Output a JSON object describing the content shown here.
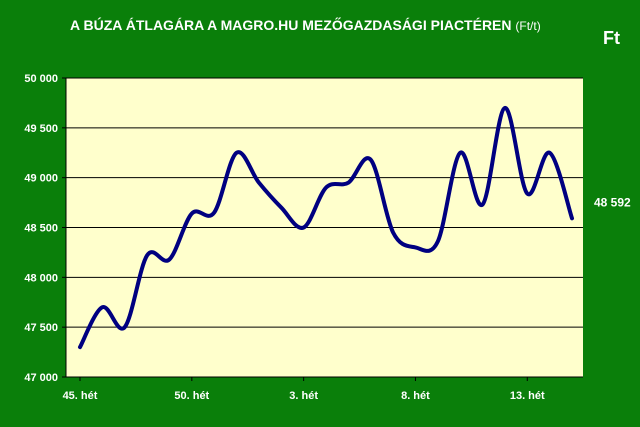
{
  "title": "A BÚZA ÁTLAGÁRA A MAGRO.HU MEZŐGAZDASÁGI PIACTÉREN",
  "title_unit": "(Ft/t)",
  "unit_label": "Ft",
  "colors": {
    "background": "#0a7f0a",
    "plot_area": "#ffffcc",
    "line": "#000080",
    "grid": "#000000"
  },
  "chart_data": {
    "type": "line",
    "title": "A BÚZA ÁTLAGÁRA A MAGRO.HU MEZŐGAZDASÁGI PIACTÉREN (Ft/t)",
    "ylabel": "Ft",
    "ylim": [
      47000,
      50000
    ],
    "yticks": [
      47000,
      47500,
      48000,
      48500,
      49000,
      49500,
      50000
    ],
    "ytick_labels": [
      "47 000",
      "47 500",
      "48 000",
      "48 500",
      "49 000",
      "49 500",
      "50 000"
    ],
    "x_tick_labels": [
      {
        "index": 0,
        "label": "45. hét"
      },
      {
        "index": 5,
        "label": "50. hét"
      },
      {
        "index": 10,
        "label": "3. hét"
      },
      {
        "index": 15,
        "label": "8. hét"
      },
      {
        "index": 20,
        "label": "13. hét"
      }
    ],
    "grid": true,
    "series": [
      {
        "values": [
          47300,
          47700,
          47500,
          48220,
          48180,
          48640,
          48650,
          49250,
          48950,
          48700,
          48500,
          48900,
          48950,
          49180,
          48450,
          48300,
          48360,
          49250,
          48730,
          49700,
          48840,
          49250,
          48592
        ]
      }
    ],
    "last_value_label": "48 592"
  }
}
